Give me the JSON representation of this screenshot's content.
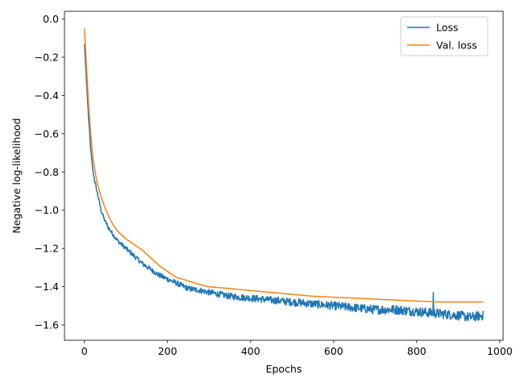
{
  "chart_data": {
    "type": "line",
    "title": "",
    "xlabel": "Epochs",
    "ylabel": "Negative log-likelihood",
    "xlim": [
      -48,
      1008
    ],
    "ylim": [
      -1.68,
      0.04
    ],
    "xticks": [
      0,
      200,
      400,
      600,
      800,
      1000
    ],
    "xtick_labels": [
      "0",
      "200",
      "400",
      "600",
      "800",
      "1000"
    ],
    "yticks": [
      0.0,
      -0.2,
      -0.4,
      -0.6,
      -0.8,
      -1.0,
      -1.2,
      -1.4,
      -1.6
    ],
    "ytick_labels": [
      "0.0",
      "−0.2",
      "−0.4",
      "−0.6",
      "−0.8",
      "−1.0",
      "−1.2",
      "−1.4",
      "−1.6"
    ],
    "grid": false,
    "legend_position": "top-right",
    "series": [
      {
        "name": "Loss",
        "color": "#1f77b4",
        "noise": true,
        "x": [
          0,
          5,
          10,
          15,
          20,
          25,
          30,
          40,
          50,
          60,
          70,
          80,
          90,
          100,
          120,
          140,
          160,
          180,
          200,
          220,
          250,
          280,
          300,
          350,
          400,
          450,
          500,
          550,
          600,
          650,
          700,
          750,
          800,
          850,
          900,
          930,
          960
        ],
        "y": [
          -0.13,
          -0.33,
          -0.52,
          -0.68,
          -0.79,
          -0.85,
          -0.9,
          -1.0,
          -1.06,
          -1.1,
          -1.13,
          -1.16,
          -1.18,
          -1.2,
          -1.24,
          -1.28,
          -1.31,
          -1.34,
          -1.36,
          -1.38,
          -1.41,
          -1.42,
          -1.43,
          -1.45,
          -1.46,
          -1.47,
          -1.48,
          -1.49,
          -1.5,
          -1.51,
          -1.52,
          -1.52,
          -1.53,
          -1.54,
          -1.55,
          -1.56,
          -1.55
        ]
      },
      {
        "name": "Val. loss",
        "color": "#ff7f0e",
        "noise": false,
        "x": [
          0,
          5,
          10,
          15,
          20,
          25,
          30,
          40,
          50,
          60,
          70,
          80,
          90,
          100,
          120,
          140,
          160,
          180,
          200,
          220,
          250,
          280,
          300,
          350,
          400,
          450,
          500,
          550,
          600,
          650,
          700,
          750,
          800,
          850,
          900,
          930,
          960
        ],
        "y": [
          -0.05,
          -0.25,
          -0.45,
          -0.6,
          -0.72,
          -0.79,
          -0.85,
          -0.93,
          -0.99,
          -1.04,
          -1.08,
          -1.11,
          -1.13,
          -1.15,
          -1.18,
          -1.21,
          -1.25,
          -1.29,
          -1.32,
          -1.35,
          -1.37,
          -1.39,
          -1.4,
          -1.41,
          -1.42,
          -1.43,
          -1.44,
          -1.45,
          -1.455,
          -1.46,
          -1.465,
          -1.47,
          -1.475,
          -1.48,
          -1.48,
          -1.48,
          -1.48
        ]
      }
    ]
  }
}
